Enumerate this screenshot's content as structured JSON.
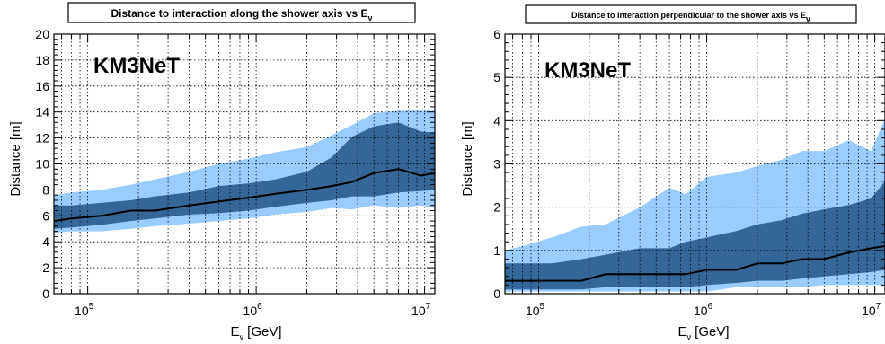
{
  "chart_data": [
    {
      "type": "area",
      "title": "Distance to interaction along the shower axis vs E",
      "title_subscript": "ν",
      "xlabel": "E",
      "xlabel_subscript": "ν",
      "xlabel_unit": " [GeV]",
      "ylabel": "Distance [m]",
      "annotation": "KM3NeT",
      "xscale": "log",
      "xlim": [
        63000,
        11500000
      ],
      "ylim": [
        0,
        20
      ],
      "x_ticks": [
        {
          "value": 100000,
          "base": "10",
          "exp": "5"
        },
        {
          "value": 1000000,
          "base": "10",
          "exp": "6"
        },
        {
          "value": 10000000,
          "base": "10",
          "exp": "7"
        }
      ],
      "y_ticks": [
        "0",
        "2",
        "4",
        "6",
        "8",
        "10",
        "12",
        "14",
        "16",
        "18",
        "20"
      ],
      "y_tick_values": [
        0,
        2,
        4,
        6,
        8,
        10,
        12,
        14,
        16,
        18,
        20
      ],
      "grid": true,
      "colors": {
        "outer_band": "#99ccff",
        "inner_band": "#336699",
        "median": "#000000"
      },
      "x": [
        63000,
        80000,
        120000,
        180000,
        250000,
        400000,
        600000,
        900000,
        1300000,
        2000000,
        2800000,
        3700000,
        5000000,
        7000000,
        9500000,
        11500000
      ],
      "series": [
        {
          "role": "outer_upper",
          "values": [
            7.6,
            7.8,
            8.0,
            8.4,
            8.8,
            9.4,
            10.0,
            10.4,
            10.9,
            11.3,
            12.2,
            13.0,
            13.9,
            14.1,
            14.1,
            14.1
          ]
        },
        {
          "role": "inner_upper",
          "values": [
            6.8,
            6.8,
            7.0,
            7.2,
            7.5,
            7.8,
            8.3,
            8.5,
            8.8,
            9.4,
            10.5,
            12.1,
            12.9,
            13.2,
            12.5,
            12.4
          ]
        },
        {
          "role": "median",
          "values": [
            5.6,
            5.8,
            6.0,
            6.4,
            6.4,
            6.8,
            7.1,
            7.4,
            7.7,
            8.0,
            8.3,
            8.6,
            9.3,
            9.6,
            9.1,
            9.3
          ]
        },
        {
          "role": "inner_lower",
          "values": [
            5.0,
            5.1,
            5.3,
            5.6,
            5.8,
            6.1,
            6.2,
            6.4,
            6.7,
            7.0,
            7.2,
            7.5,
            7.5,
            7.8,
            7.9,
            8.0
          ]
        },
        {
          "role": "outer_lower",
          "values": [
            4.7,
            4.8,
            4.8,
            5.0,
            5.2,
            5.4,
            5.6,
            5.8,
            6.1,
            6.3,
            6.6,
            6.5,
            6.8,
            6.6,
            6.8,
            6.6
          ]
        }
      ]
    },
    {
      "type": "area",
      "title": "Distance to interaction perpendicular to the shower axis vs E",
      "title_subscript": "ν",
      "xlabel": "E",
      "xlabel_subscript": "ν",
      "xlabel_unit": " [GeV]",
      "ylabel": "Distance [m]",
      "annotation": "KM3NeT",
      "xscale": "log",
      "xlim": [
        63000,
        11500000
      ],
      "ylim": [
        0,
        6
      ],
      "x_ticks": [
        {
          "value": 100000,
          "base": "10",
          "exp": "5"
        },
        {
          "value": 1000000,
          "base": "10",
          "exp": "6"
        },
        {
          "value": 10000000,
          "base": "10",
          "exp": "7"
        }
      ],
      "y_ticks": [
        "0",
        "1",
        "2",
        "3",
        "4",
        "5",
        "6"
      ],
      "y_tick_values": [
        0,
        1,
        2,
        3,
        4,
        5,
        6
      ],
      "grid": true,
      "colors": {
        "outer_band": "#99ccff",
        "inner_band": "#336699",
        "median": "#000000"
      },
      "x": [
        63000,
        80000,
        120000,
        180000,
        250000,
        400000,
        600000,
        750000,
        1000000,
        1500000,
        2000000,
        2800000,
        3700000,
        5000000,
        7000000,
        9500000,
        11500000
      ],
      "series": [
        {
          "role": "outer_upper",
          "values": [
            1.0,
            1.1,
            1.3,
            1.55,
            1.6,
            2.0,
            2.45,
            2.3,
            2.7,
            2.8,
            2.95,
            3.1,
            3.3,
            3.3,
            3.55,
            3.3,
            4.05
          ]
        },
        {
          "role": "inner_upper",
          "values": [
            0.7,
            0.7,
            0.7,
            0.8,
            0.9,
            1.05,
            1.05,
            1.2,
            1.3,
            1.45,
            1.6,
            1.7,
            1.85,
            1.95,
            2.05,
            2.2,
            2.6
          ]
        },
        {
          "role": "median",
          "values": [
            0.3,
            0.3,
            0.3,
            0.3,
            0.45,
            0.45,
            0.45,
            0.45,
            0.55,
            0.55,
            0.7,
            0.7,
            0.8,
            0.8,
            0.95,
            1.05,
            1.1
          ]
        },
        {
          "role": "inner_lower",
          "values": [
            0.1,
            0.1,
            0.1,
            0.1,
            0.15,
            0.15,
            0.15,
            0.15,
            0.2,
            0.25,
            0.3,
            0.3,
            0.35,
            0.4,
            0.45,
            0.5,
            0.55
          ]
        },
        {
          "role": "outer_lower",
          "values": [
            0.05,
            0.05,
            0.05,
            0.05,
            0.05,
            0.05,
            0.05,
            0.05,
            0.05,
            0.15,
            0.15,
            0.15,
            0.15,
            0.2,
            0.2,
            0.2,
            0.2
          ]
        }
      ]
    }
  ]
}
